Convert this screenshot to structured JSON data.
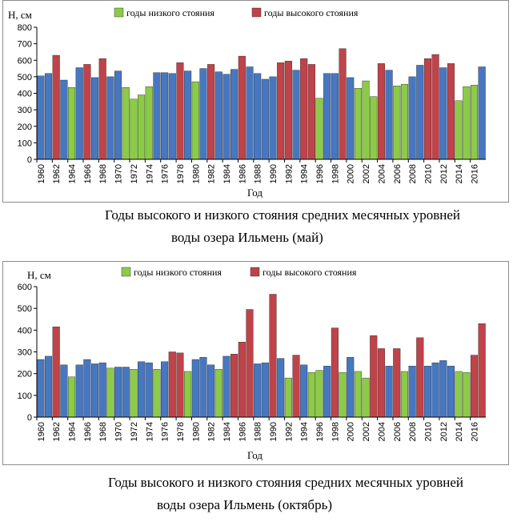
{
  "legend_colors": {
    "low": "#8CCB47",
    "high": "#C0434A",
    "normal": "#4777C1"
  },
  "chart_data": [
    {
      "type": "bar",
      "ylabel": "Н, см",
      "xlabel": "Год",
      "ylim": [
        0,
        800
      ],
      "yticks": [
        0,
        100,
        200,
        300,
        400,
        500,
        600,
        700,
        800
      ],
      "legend": {
        "low_label": "годы низкого стояния",
        "high_label": "годы высокого стояния",
        "placement": "top"
      },
      "years": [
        1960,
        1961,
        1962,
        1963,
        1964,
        1965,
        1966,
        1967,
        1968,
        1969,
        1970,
        1971,
        1972,
        1973,
        1974,
        1975,
        1976,
        1977,
        1978,
        1979,
        1980,
        1981,
        1982,
        1983,
        1984,
        1985,
        1986,
        1987,
        1988,
        1989,
        1990,
        1991,
        1992,
        1993,
        1994,
        1995,
        1996,
        1997,
        1998,
        1999,
        2000,
        2001,
        2002,
        2003,
        2004,
        2005,
        2006,
        2007,
        2008,
        2009,
        2010,
        2011,
        2012,
        2013,
        2014,
        2015,
        2016,
        2017
      ],
      "values": [
        505,
        520,
        630,
        480,
        435,
        555,
        575,
        495,
        610,
        500,
        535,
        435,
        365,
        390,
        440,
        525,
        525,
        520,
        585,
        535,
        470,
        550,
        575,
        530,
        515,
        545,
        625,
        560,
        520,
        485,
        500,
        585,
        595,
        540,
        610,
        575,
        370,
        520,
        520,
        670,
        495,
        430,
        475,
        380,
        580,
        540,
        445,
        455,
        500,
        570,
        610,
        635,
        555,
        580,
        355,
        440,
        450,
        560
      ],
      "categories": [
        "normal",
        "normal",
        "high",
        "normal",
        "low",
        "normal",
        "high",
        "normal",
        "high",
        "normal",
        "normal",
        "low",
        "low",
        "low",
        "low",
        "normal",
        "normal",
        "normal",
        "high",
        "normal",
        "low",
        "normal",
        "high",
        "normal",
        "normal",
        "normal",
        "high",
        "normal",
        "normal",
        "normal",
        "normal",
        "high",
        "high",
        "normal",
        "high",
        "high",
        "low",
        "normal",
        "normal",
        "high",
        "normal",
        "low",
        "low",
        "low",
        "high",
        "normal",
        "low",
        "low",
        "normal",
        "normal",
        "high",
        "high",
        "normal",
        "high",
        "low",
        "low",
        "low",
        "normal"
      ],
      "tick_labels": [
        "1960",
        "1962",
        "1964",
        "1966",
        "1968",
        "1970",
        "1972",
        "1974",
        "1976",
        "1978",
        "1980",
        "1982",
        "1984",
        "1986",
        "1988",
        "1990",
        "1992",
        "1994",
        "1996",
        "1998",
        "2000",
        "2002",
        "2004",
        "2006",
        "2008",
        "2010",
        "2012",
        "2014",
        "2016"
      ],
      "caption_line1": "Годы высокого и низкого стояния средних месячных уровней",
      "caption_line2": "воды озера Ильмень (май)"
    },
    {
      "type": "bar",
      "ylabel": "Н, см",
      "xlabel": "Год",
      "ylim": [
        0,
        600
      ],
      "yticks": [
        0,
        100,
        200,
        300,
        400,
        500,
        600
      ],
      "legend": {
        "low_label": "годы низкого стояния",
        "high_label": "годы высокого стояния",
        "placement": "top"
      },
      "years": [
        1960,
        1961,
        1962,
        1963,
        1964,
        1965,
        1966,
        1967,
        1968,
        1969,
        1970,
        1971,
        1972,
        1973,
        1974,
        1975,
        1976,
        1977,
        1978,
        1979,
        1980,
        1981,
        1982,
        1983,
        1984,
        1985,
        1986,
        1987,
        1988,
        1989,
        1990,
        1991,
        1992,
        1993,
        1994,
        1995,
        1996,
        1997,
        1998,
        1999,
        2000,
        2001,
        2002,
        2003,
        2004,
        2005,
        2006,
        2007,
        2008,
        2009,
        2010,
        2011,
        2012,
        2013,
        2014,
        2015,
        2016,
        2017
      ],
      "values": [
        265,
        280,
        415,
        240,
        185,
        240,
        265,
        245,
        250,
        225,
        230,
        230,
        220,
        255,
        250,
        220,
        255,
        300,
        295,
        210,
        265,
        275,
        240,
        220,
        280,
        290,
        345,
        495,
        245,
        250,
        565,
        270,
        180,
        285,
        240,
        205,
        215,
        235,
        410,
        205,
        275,
        210,
        180,
        375,
        315,
        235,
        315,
        210,
        235,
        365,
        235,
        250,
        260,
        235,
        210,
        205,
        285,
        430
      ],
      "categories": [
        "normal",
        "normal",
        "high",
        "normal",
        "low",
        "normal",
        "normal",
        "normal",
        "normal",
        "low",
        "normal",
        "normal",
        "low",
        "normal",
        "normal",
        "low",
        "normal",
        "high",
        "high",
        "low",
        "normal",
        "normal",
        "normal",
        "low",
        "normal",
        "high",
        "high",
        "high",
        "normal",
        "normal",
        "high",
        "normal",
        "low",
        "high",
        "normal",
        "low",
        "low",
        "normal",
        "high",
        "low",
        "normal",
        "low",
        "low",
        "high",
        "high",
        "normal",
        "high",
        "low",
        "normal",
        "high",
        "normal",
        "normal",
        "normal",
        "normal",
        "low",
        "low",
        "high",
        "high"
      ],
      "tick_labels": [
        "1960",
        "1962",
        "1964",
        "1966",
        "1968",
        "1970",
        "1972",
        "1974",
        "1976",
        "1978",
        "1980",
        "1982",
        "1984",
        "1986",
        "1988",
        "1990",
        "1992",
        "1994",
        "1996",
        "1998",
        "2000",
        "2002",
        "2004",
        "2006",
        "2008",
        "2010",
        "2012",
        "2014",
        "2016"
      ],
      "caption_line1": "Годы высокого и низкого стояния средних месячных уровней",
      "caption_line2": "воды озера Ильмень (октябрь)"
    }
  ]
}
